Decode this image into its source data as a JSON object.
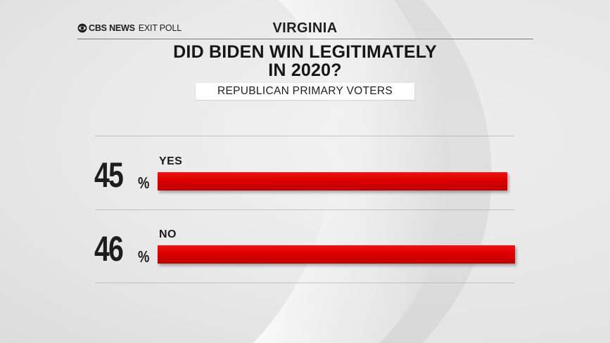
{
  "branding": {
    "network": "CBS NEWS",
    "product": "EXIT POLL"
  },
  "state": "VIRGINIA",
  "question_line1": "DID BIDEN WIN LEGITIMATELY",
  "question_line2": "IN 2020?",
  "group": "REPUBLICAN PRIMARY VOTERS",
  "colors": {
    "bar": "#dd0000",
    "text": "#1d1d1d"
  },
  "icons": {
    "brand_logo": "cbs-eye-icon"
  },
  "chart_data": {
    "type": "bar",
    "orientation": "horizontal",
    "title": "DID BIDEN WIN LEGITIMATELY IN 2020?",
    "subtitle": "REPUBLICAN PRIMARY VOTERS",
    "categories": [
      "YES",
      "NO"
    ],
    "values": [
      45,
      46
    ],
    "value_suffix": "%",
    "value_labels": [
      "45",
      "46"
    ],
    "xlim": [
      0,
      46
    ],
    "grid": false,
    "legend": "none"
  }
}
